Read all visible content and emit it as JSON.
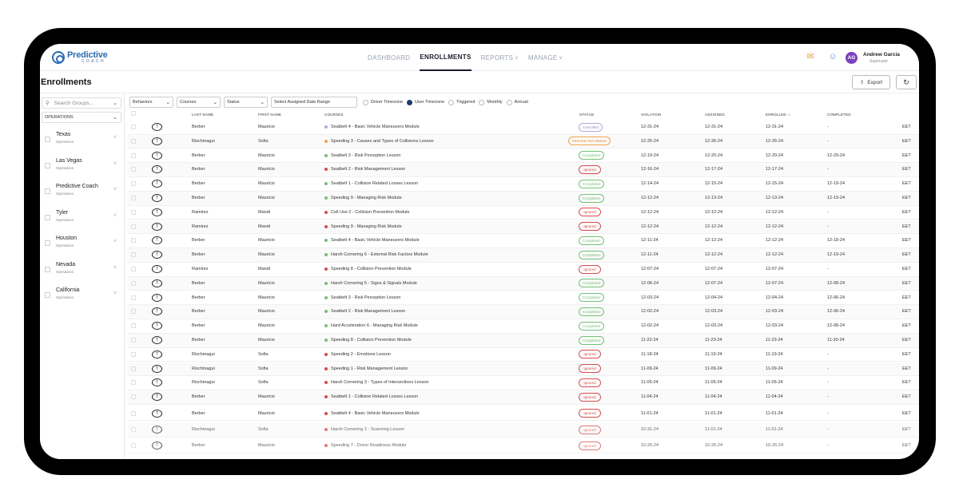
{
  "header": {
    "logo_name": "Predictive",
    "logo_sub": "COACH",
    "nav": [
      {
        "label": "DASHBOARD",
        "active": false,
        "dropdown": false
      },
      {
        "label": "ENROLLMENTS",
        "active": true,
        "dropdown": false
      },
      {
        "label": "REPORTS",
        "active": false,
        "dropdown": true
      },
      {
        "label": "MANAGE",
        "active": false,
        "dropdown": true
      }
    ],
    "icons": [
      "chat-icon",
      "user-icon"
    ],
    "user": {
      "initials": "AG",
      "name": "Andrew Garcia",
      "role": "Superuser"
    }
  },
  "page": {
    "title": "Enrollments",
    "export_label": "Export",
    "refresh_glyph": "↻"
  },
  "sidebar": {
    "search_placeholder": "Search Groups...",
    "selected_scope": "OPERATIONS",
    "groups": [
      {
        "name": "Texas",
        "sub": "Operations"
      },
      {
        "name": "Las Vegas",
        "sub": "Operations"
      },
      {
        "name": "Predictive Coach",
        "sub": "Operations"
      },
      {
        "name": "Tyler",
        "sub": "Operations"
      },
      {
        "name": "Houston",
        "sub": "Operations"
      },
      {
        "name": "Nevada",
        "sub": "Operations"
      },
      {
        "name": "California",
        "sub": "Operations"
      }
    ]
  },
  "filters": {
    "behaviors": "Behaviors",
    "courses": "Courses",
    "status": "Status",
    "date_range_placeholder": "Select Assigned Date Range",
    "radios": [
      {
        "label": "Driver Timezone",
        "checked": false
      },
      {
        "label": "User Timezone",
        "checked": true
      },
      {
        "label": "Triggered",
        "checked": false
      },
      {
        "label": "Monthly",
        "checked": false
      },
      {
        "label": "Annual",
        "checked": false
      }
    ]
  },
  "table": {
    "columns": {
      "last": "LAST NAME",
      "first": "FIRST NAME",
      "courses": "COURSES",
      "status": "STATUS",
      "violation": "VIOLATION",
      "assigned": "ASSIGNED",
      "enrolled": "ENROLLED ↑↓",
      "completed": "COMPLETED"
    },
    "badge": "T",
    "tz": "EET",
    "rows": [
      {
        "last": "Berber",
        "first": "Mauricio",
        "course": "Seatbelt 4 - Basic Vehicle Maneuvers Module",
        "dot": "#b8a6e0",
        "status": "Cancelled",
        "st": "cancelled",
        "violation": "12-31-24",
        "assigned": "12-31-24",
        "enrolled": "12-31-24",
        "completed": "-"
      },
      {
        "last": "Rischmagui",
        "first": "Sofia",
        "course": "Speeding 3 - Causes and Types of Collisions Lesson",
        "dot": "#f0a34a",
        "status": "Past Due Not Started",
        "st": "pastdue",
        "violation": "12-25-24",
        "assigned": "12-26-24",
        "enrolled": "12-26-24",
        "completed": "-"
      },
      {
        "last": "Berber",
        "first": "Mauricio",
        "course": "Seatbelt 3 - Risk Perception Lesson",
        "dot": "#72c175",
        "status": "Completed",
        "st": "completed",
        "violation": "12-19-24",
        "assigned": "12-20-24",
        "enrolled": "12-20-24",
        "completed": "12-29-24"
      },
      {
        "last": "Berber",
        "first": "Mauricio",
        "course": "Seatbelt 2 - Risk Management Lesson",
        "dot": "#d94b4b",
        "status": "Ignored",
        "st": "ignored",
        "violation": "12-16-24",
        "assigned": "12-17-24",
        "enrolled": "12-17-24",
        "completed": "-"
      },
      {
        "last": "Berber",
        "first": "Mauricio",
        "course": "Seatbelt 1 - Collision Related Losses Lesson",
        "dot": "#72c175",
        "status": "Completed",
        "st": "completed",
        "violation": "12-14-24",
        "assigned": "12-15-24",
        "enrolled": "12-15-24",
        "completed": "12-19-24"
      },
      {
        "last": "Berber",
        "first": "Mauricio",
        "course": "Speeding 9 - Managing Risk Module",
        "dot": "#72c175",
        "status": "Completed",
        "st": "completed",
        "violation": "12-12-24",
        "assigned": "12-13-24",
        "enrolled": "12-13-24",
        "completed": "12-19-24"
      },
      {
        "last": "Ramirez",
        "first": "Mandi",
        "course": "Cell Use 2 - Collision Prevention Module",
        "dot": "#d94b4b",
        "status": "Ignored",
        "st": "ignored",
        "violation": "12-12-24",
        "assigned": "12-12-24",
        "enrolled": "12-12-24",
        "completed": "-"
      },
      {
        "last": "Ramirez",
        "first": "Mandi",
        "course": "Speeding 9 - Managing Risk Module",
        "dot": "#d94b4b",
        "status": "Ignored",
        "st": "ignored",
        "violation": "12-12-24",
        "assigned": "12-12-24",
        "enrolled": "12-12-24",
        "completed": "-"
      },
      {
        "last": "Berber",
        "first": "Mauricio",
        "course": "Seatbelt 4 - Basic Vehicle Maneuvers Module",
        "dot": "#72c175",
        "status": "Completed",
        "st": "completed",
        "violation": "12-11-24",
        "assigned": "12-12-24",
        "enrolled": "12-12-24",
        "completed": "12-18-24"
      },
      {
        "last": "Berber",
        "first": "Mauricio",
        "course": "Harsh Cornering 6 - External Risk Factors Module",
        "dot": "#72c175",
        "status": "Completed",
        "st": "completed",
        "violation": "12-11-24",
        "assigned": "12-12-24",
        "enrolled": "12-12-24",
        "completed": "12-19-24"
      },
      {
        "last": "Ramirez",
        "first": "Mandi",
        "course": "Speeding 8 - Collision Prevention Module",
        "dot": "#d94b4b",
        "status": "Ignored",
        "st": "ignored",
        "violation": "12-07-24",
        "assigned": "12-07-24",
        "enrolled": "12-07-24",
        "completed": "-"
      },
      {
        "last": "Berber",
        "first": "Mauricio",
        "course": "Harsh Cornering 5 - Signs & Signals Module",
        "dot": "#72c175",
        "status": "Completed",
        "st": "completed",
        "violation": "12-06-24",
        "assigned": "12-07-24",
        "enrolled": "12-07-24",
        "completed": "12-08-24"
      },
      {
        "last": "Berber",
        "first": "Mauricio",
        "course": "Seatbelt 3 - Risk Perception Lesson",
        "dot": "#72c175",
        "status": "Completed",
        "st": "completed",
        "violation": "12-03-24",
        "assigned": "12-04-24",
        "enrolled": "12-04-24",
        "completed": "12-06-24"
      },
      {
        "last": "Berber",
        "first": "Mauricio",
        "course": "Seatbelt 2 - Risk Management Lesson",
        "dot": "#72c175",
        "status": "Completed",
        "st": "completed",
        "violation": "12-02-24",
        "assigned": "12-03-24",
        "enrolled": "12-03-24",
        "completed": "12-06-24"
      },
      {
        "last": "Berber",
        "first": "Mauricio",
        "course": "Hard Acceleration 6 - Managing Risk Module",
        "dot": "#72c175",
        "status": "Completed",
        "st": "completed",
        "violation": "12-02-24",
        "assigned": "12-03-24",
        "enrolled": "12-03-24",
        "completed": "12-08-24"
      },
      {
        "last": "Berber",
        "first": "Mauricio",
        "course": "Speeding 8 - Collision Prevention Module",
        "dot": "#72c175",
        "status": "Completed",
        "st": "completed",
        "violation": "11-22-24",
        "assigned": "11-23-24",
        "enrolled": "11-23-24",
        "completed": "11-30-24"
      },
      {
        "last": "Rischmagui",
        "first": "Sofia",
        "course": "Speeding 2 - Emotions Lesson",
        "dot": "#d94b4b",
        "status": "Ignored",
        "st": "ignored",
        "violation": "11-18-24",
        "assigned": "11-19-24",
        "enrolled": "11-19-24",
        "completed": "-"
      },
      {
        "last": "Rischmagui",
        "first": "Sofia",
        "course": "Speeding 1 - Risk Management Lesson",
        "dot": "#d94b4b",
        "status": "Ignored",
        "st": "ignored",
        "violation": "11-09-24",
        "assigned": "11-09-24",
        "enrolled": "11-09-24",
        "completed": "-"
      },
      {
        "last": "Rischmagui",
        "first": "Sofia",
        "course": "Harsh Cornering 3 - Types of Intersections Lesson",
        "dot": "#d94b4b",
        "status": "Ignored",
        "st": "ignored",
        "violation": "11-05-24",
        "assigned": "11-05-24",
        "enrolled": "11-05-24",
        "completed": "-"
      },
      {
        "last": "Berber",
        "first": "Mauricio",
        "course": "Seatbelt 1 - Collision Related Losses Lesson",
        "dot": "#d94b4b",
        "status": "Ignored",
        "st": "ignored",
        "violation": "11-04-24",
        "assigned": "11-04-24",
        "enrolled": "11-04-24",
        "completed": "-"
      },
      {
        "last": "Berber",
        "first": "Mauricio",
        "course": "Seatbelt 4 - Basic Vehicle Maneuvers Module",
        "dot": "#d94b4b",
        "status": "Ignored",
        "st": "ignored",
        "violation": "11-01-24",
        "assigned": "11-01-24",
        "enrolled": "11-01-24",
        "completed": "-"
      },
      {
        "last": "Rischmagui",
        "first": "Sofia",
        "course": "Harsh Cornering 2 - Scanning Lesson",
        "dot": "#d94b4b",
        "status": "Ignored",
        "st": "ignored",
        "violation": "10-31-24",
        "assigned": "11-01-24",
        "enrolled": "11-01-24",
        "completed": "-"
      },
      {
        "last": "Berber",
        "first": "Mauricio",
        "course": "Speeding 7 - Driver Readiness Module",
        "dot": "#d94b4b",
        "status": "Ignored",
        "st": "ignored",
        "violation": "10-26-24",
        "assigned": "10-26-24",
        "enrolled": "10-26-24",
        "completed": "-"
      }
    ]
  }
}
